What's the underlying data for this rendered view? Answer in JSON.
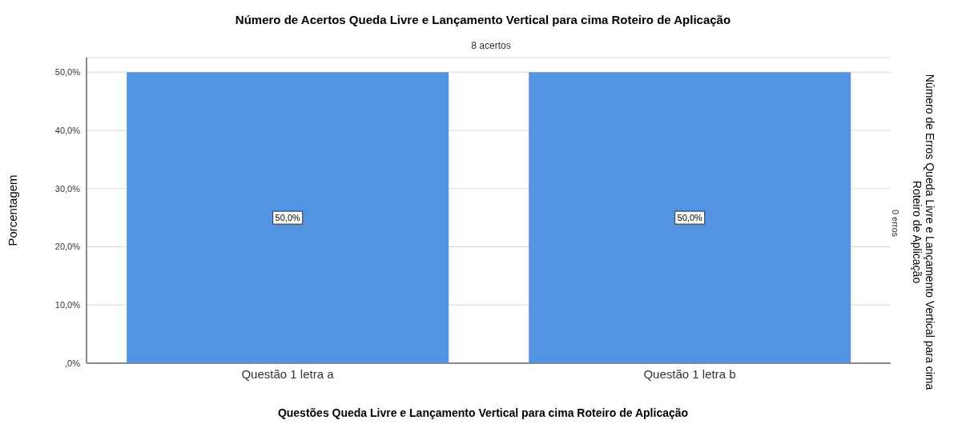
{
  "chart_data": {
    "type": "bar",
    "title": "Número de Acertos Queda Livre e Lançamento Vertical para cima Roteiro de Aplicação",
    "xlabel": "Questões Queda Livre e Lançamento Vertical para cima Roteiro de Aplicação",
    "ylabel": "Porcentagem",
    "y2label": "Número de Erros Queda Livre e Lançamento Vertical para cima Roteiro de Aplicação",
    "annotations": [
      "8  acertos",
      "0 erros"
    ],
    "categories": [
      "Questão 1 letra a",
      "Questão 1 letra b"
    ],
    "values": [
      50,
      50
    ],
    "value_labels": [
      "50,0%",
      "50,0%"
    ],
    "color": "#5294e2",
    "ylim": [
      0,
      52.5
    ],
    "yticks": [
      {
        "value": 0,
        "label": ",0%"
      },
      {
        "value": 10,
        "label": "10,0%"
      },
      {
        "value": 20,
        "label": "20,0%"
      },
      {
        "value": 30,
        "label": "30,0%"
      },
      {
        "value": 40,
        "label": "40,0%"
      },
      {
        "value": 50,
        "label": "50,0%"
      }
    ],
    "grid": "y"
  }
}
